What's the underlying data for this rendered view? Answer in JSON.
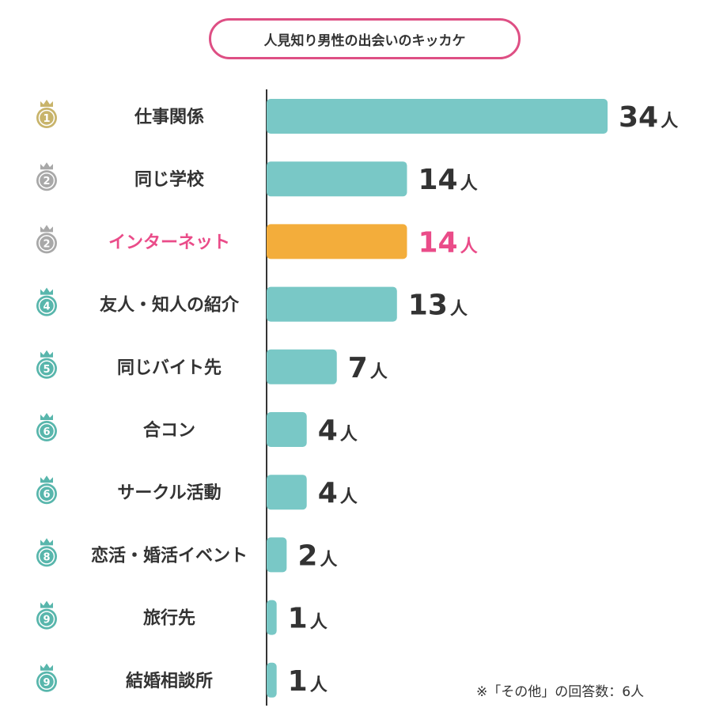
{
  "title": "人見知り男性の出会いのキッカケ",
  "footnote": "※「その他」の回答数：6人",
  "colors": {
    "bar": "#79c8c6",
    "highlight_bar": "#f3ad3b",
    "highlight_text": "#ea4c89",
    "gold": "#c8b46b",
    "silver": "#a8a8a8",
    "teal_medal": "#58b6ac",
    "title_border": "#de4f84"
  },
  "chart_data": {
    "type": "bar",
    "orientation": "horizontal",
    "unit": "人",
    "categories": [
      "仕事関係",
      "同じ学校",
      "インターネット",
      "友人・知人の紹介",
      "同じバイト先",
      "合コン",
      "サークル活動",
      "恋活・婚活イベント",
      "旅行先",
      "結婚相談所"
    ],
    "values": [
      34,
      14,
      14,
      13,
      7,
      4,
      4,
      2,
      1,
      1
    ],
    "ranks": [
      "1",
      "2",
      "2",
      "4",
      "5",
      "6",
      "6",
      "8",
      "9",
      "9"
    ],
    "highlight": "インターネット",
    "xlim": [
      0,
      34
    ]
  }
}
